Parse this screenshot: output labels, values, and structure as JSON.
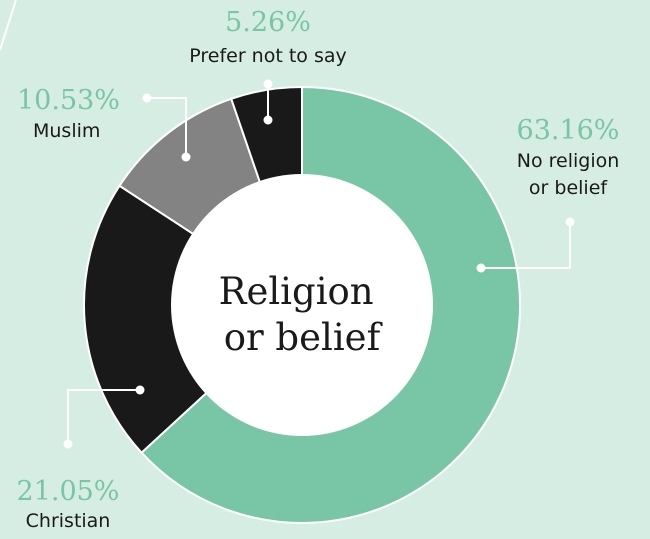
{
  "chart_data": {
    "type": "pie",
    "title": "Religion or belief",
    "title_lines": [
      "Religion",
      "or belief"
    ],
    "slices": [
      {
        "label": "No religion or belief",
        "label_lines": [
          "No religion",
          "or belief"
        ],
        "value": 63.16,
        "display": "63.16%",
        "color": "#78c6a6"
      },
      {
        "label": "Christian",
        "label_lines": [
          "Christian"
        ],
        "value": 21.05,
        "display": "21.05%",
        "color": "#191919"
      },
      {
        "label": "Muslim",
        "label_lines": [
          "Muslim"
        ],
        "value": 10.53,
        "display": "10.53%",
        "color": "#838383"
      },
      {
        "label": "Prefer not to say",
        "label_lines": [
          "Prefer not to say"
        ],
        "value": 5.26,
        "display": "5.26%",
        "color": "#191919"
      }
    ]
  },
  "colors": {
    "background": "#d5ede2",
    "percent_text": "#78c6a6",
    "leader_line": "#ffffff"
  }
}
